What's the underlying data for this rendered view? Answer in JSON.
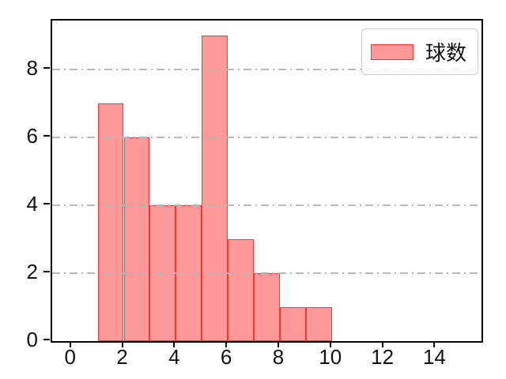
{
  "chart_data": {
    "type": "bar",
    "subtype": "histogram",
    "title": "",
    "xlabel": "",
    "ylabel": "",
    "bin_edges": [
      1,
      2,
      3,
      4,
      5,
      6,
      7,
      8,
      9,
      10
    ],
    "counts": [
      7,
      6,
      4,
      4,
      9,
      3,
      2,
      1,
      1
    ],
    "xticks": [
      0,
      2,
      4,
      6,
      8,
      10,
      12,
      14
    ],
    "yticks": [
      0,
      2,
      4,
      6,
      8
    ],
    "xlim": [
      -0.75,
      15.75
    ],
    "ylim": [
      0,
      9.45
    ],
    "grid": "horizontal, dash-dot, above bars",
    "legend_position": "upper right",
    "series": [
      {
        "label": "球数",
        "fill_color": "#ff9999",
        "edge_color": "#f23b3b"
      }
    ],
    "colors": {
      "bar_fill": "#ff9999",
      "bar_edge": "#f23b3b",
      "gridline": "#b4b4b4",
      "spine": "#000000",
      "tick_label": "#111111",
      "legend_border": "#cccccc",
      "background": "#ffffff"
    }
  }
}
